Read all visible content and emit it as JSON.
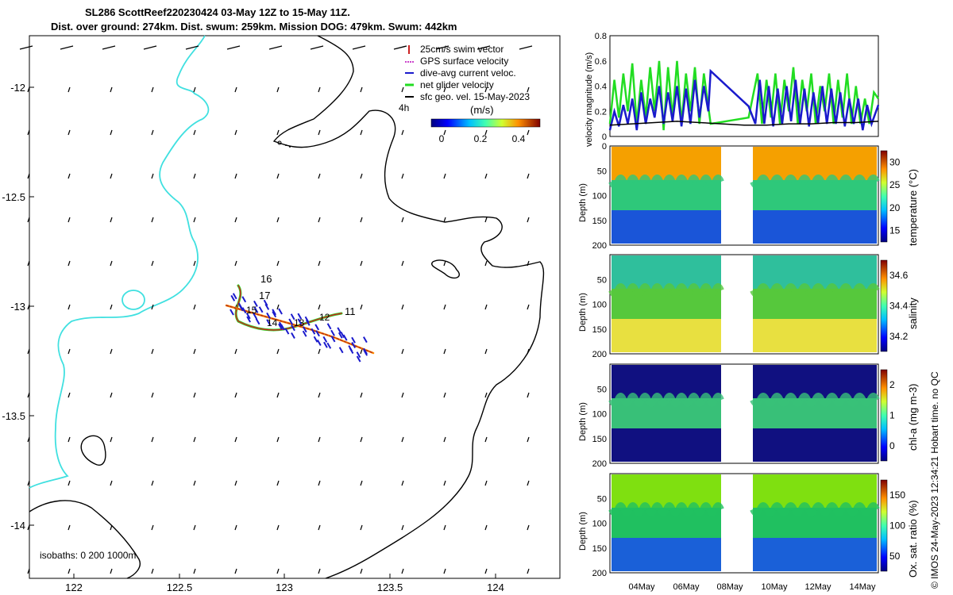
{
  "header": {
    "title_line1": "SL286 ScottReef220230424 03-May 12Z to 15-May 11Z.",
    "title_line2": "Dist. over ground: 274km. Dist. swum: 259km. Mission DOG: 479km. Swum: 442km"
  },
  "map": {
    "x_ticks": [
      "122",
      "122.5",
      "123",
      "123.5",
      "124"
    ],
    "y_ticks": [
      "-12",
      "-12.5",
      "-13",
      "-13.5",
      "-14"
    ],
    "legend": [
      {
        "label": "25cm/s swim vector",
        "color": "#cc2222"
      },
      {
        "label": "GPS surface velocity",
        "color": "#cc44cc"
      },
      {
        "label": "dive-avg current veloc.",
        "color": "#1a1acc"
      },
      {
        "label": "net glider velocity",
        "color": "#22dd22"
      },
      {
        "label": "sfc geo. vel. 15-May-2023",
        "color": "#000000"
      }
    ],
    "time_tag": "4h",
    "colorbar_unit": "(m/s)",
    "colorbar_ticks": [
      "0",
      "0.2",
      "0.4"
    ],
    "isobaths_label": "isobaths: 0   200  1000m",
    "day_labels": [
      "16",
      "17",
      "15",
      "14",
      "13",
      "12",
      "11"
    ],
    "colors": {
      "coast": "#40e0e0",
      "isobath": "#000000"
    }
  },
  "side": {
    "footer_note": "© IMOS 24-May-2023 12:34:21 Hobart time. no QC",
    "date_ticks": [
      "04May",
      "06May",
      "08May",
      "10May",
      "12May",
      "14May"
    ]
  },
  "chart_data": [
    {
      "type": "line",
      "ylabel": "velocity magnitude (m/s)",
      "ylim": [
        0,
        0.8
      ],
      "yticks": [
        "0",
        "0.2",
        "0.4",
        "0.6",
        "0.8"
      ],
      "x_range_days": [
        3.5,
        15.5
      ],
      "series": [
        {
          "name": "net glider velocity",
          "color": "#22dd22",
          "x": [
            3.5,
            3.7,
            3.9,
            4.1,
            4.3,
            4.5,
            4.7,
            4.9,
            5.1,
            5.3,
            5.5,
            5.7,
            5.9,
            6.1,
            6.3,
            6.5,
            6.7,
            6.9,
            7.1,
            7.3,
            7.5,
            7.7,
            8.0,
            9.7,
            10.1,
            10.3,
            10.5,
            10.7,
            10.9,
            11.1,
            11.3,
            11.5,
            11.7,
            11.9,
            12.1,
            12.3,
            12.5,
            12.7,
            12.9,
            13.1,
            13.3,
            13.5,
            13.7,
            13.9,
            14.1,
            14.3,
            14.5,
            14.7,
            14.9,
            15.1,
            15.3,
            15.5
          ],
          "values": [
            0.1,
            0.45,
            0.15,
            0.5,
            0.2,
            0.58,
            0.1,
            0.45,
            0.15,
            0.55,
            0.2,
            0.6,
            0.05,
            0.55,
            0.15,
            0.6,
            0.1,
            0.5,
            0.2,
            0.55,
            0.1,
            0.5,
            0.1,
            0.15,
            0.5,
            0.1,
            0.45,
            0.15,
            0.5,
            0.1,
            0.45,
            0.2,
            0.55,
            0.1,
            0.45,
            0.2,
            0.5,
            0.1,
            0.4,
            0.2,
            0.5,
            0.1,
            0.45,
            0.15,
            0.5,
            0.1,
            0.4,
            0.1,
            0.3,
            0.1,
            0.35,
            0.3
          ]
        },
        {
          "name": "dive-avg current veloc.",
          "color": "#1a1acc",
          "x": [
            3.5,
            3.7,
            3.9,
            4.1,
            4.3,
            4.5,
            4.7,
            4.9,
            5.1,
            5.3,
            5.5,
            5.7,
            5.9,
            6.1,
            6.3,
            6.5,
            6.7,
            6.9,
            7.1,
            7.3,
            7.5,
            7.7,
            7.9,
            8.0,
            9.7,
            10.0,
            10.2,
            10.4,
            10.6,
            10.8,
            11.0,
            11.2,
            11.4,
            11.6,
            11.8,
            12.0,
            12.2,
            12.4,
            12.6,
            12.8,
            13.0,
            13.2,
            13.4,
            13.6,
            13.8,
            14.0,
            14.2,
            14.4,
            14.6,
            14.8,
            15.0,
            15.2,
            15.5
          ],
          "values": [
            0.05,
            0.2,
            0.08,
            0.25,
            0.1,
            0.3,
            0.05,
            0.35,
            0.1,
            0.3,
            0.15,
            0.4,
            0.1,
            0.35,
            0.12,
            0.4,
            0.08,
            0.38,
            0.1,
            0.45,
            0.15,
            0.4,
            0.2,
            0.52,
            0.24,
            0.1,
            0.45,
            0.1,
            0.4,
            0.08,
            0.38,
            0.1,
            0.4,
            0.12,
            0.45,
            0.1,
            0.38,
            0.08,
            0.35,
            0.1,
            0.4,
            0.1,
            0.38,
            0.1,
            0.35,
            0.08,
            0.3,
            0.1,
            0.3,
            0.05,
            0.25,
            0.1,
            0.25
          ]
        },
        {
          "name": "sfc geo. vel.",
          "color": "#000000",
          "x": [
            3.5,
            4.5,
            5.5,
            6.5,
            7.5,
            8.5,
            9.5,
            10.5,
            11.5,
            12.5,
            13.5,
            14.5,
            15.5
          ],
          "values": [
            0.09,
            0.1,
            0.11,
            0.12,
            0.11,
            0.1,
            0.09,
            0.09,
            0.1,
            0.1,
            0.11,
            0.11,
            0.12
          ]
        }
      ]
    },
    {
      "type": "heatmap",
      "ylabel": "Depth (m)",
      "clabel": "temperature (°C)",
      "yticks": [
        "0",
        "50",
        "100",
        "150",
        "200"
      ],
      "cticks": [
        "15",
        "20",
        "25",
        "30"
      ]
    },
    {
      "type": "heatmap",
      "ylabel": "Depth (m)",
      "clabel": "salinity",
      "yticks": [
        "50",
        "100",
        "150",
        "200"
      ],
      "cticks": [
        "34.2",
        "34.4",
        "34.6"
      ]
    },
    {
      "type": "heatmap",
      "ylabel": "Depth (m)",
      "clabel": "chl-a (mg m-3)",
      "yticks": [
        "50",
        "100",
        "150",
        "200"
      ],
      "cticks": [
        "0",
        "1",
        "2"
      ]
    },
    {
      "type": "heatmap",
      "ylabel": "Depth (m)",
      "clabel": "Ox. sat. ratio (%)",
      "yticks": [
        "50",
        "100",
        "150",
        "200"
      ],
      "cticks": [
        "50",
        "100",
        "150"
      ]
    }
  ]
}
